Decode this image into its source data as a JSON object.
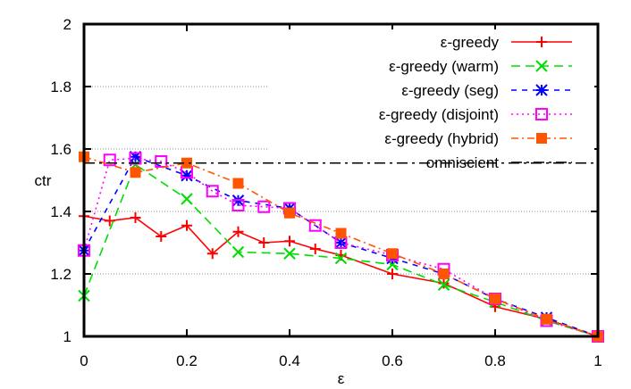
{
  "chart_data": {
    "type": "line",
    "xlabel": "ε",
    "ylabel": "ctr",
    "xlim": [
      0,
      1
    ],
    "ylim": [
      1,
      2
    ],
    "xticks": [
      "0",
      "0.2",
      "0.4",
      "0.6",
      "0.8",
      "1"
    ],
    "yticks": [
      "1",
      "1.2",
      "1.4",
      "1.6",
      "1.8",
      "2"
    ],
    "grid": "horizontal dotted",
    "legend_position": "top-right",
    "series": [
      {
        "name": "ε-greedy",
        "color": "#ff0000",
        "marker": "plus",
        "dash": "",
        "x": [
          0,
          0.05,
          0.1,
          0.15,
          0.2,
          0.25,
          0.3,
          0.35,
          0.4,
          0.45,
          0.5,
          0.6,
          0.7,
          0.8,
          0.9,
          1.0
        ],
        "y": [
          1.385,
          1.37,
          1.38,
          1.32,
          1.355,
          1.265,
          1.335,
          1.3,
          1.305,
          1.28,
          1.26,
          1.2,
          1.17,
          1.095,
          1.055,
          1.0
        ]
      },
      {
        "name": "ε-greedy (warm)",
        "color": "#00dd00",
        "marker": "cross",
        "dash": "10,6",
        "x": [
          0,
          0.1,
          0.2,
          0.3,
          0.4,
          0.5,
          0.6,
          0.7,
          0.8,
          0.9,
          1.0
        ],
        "y": [
          1.13,
          1.55,
          1.44,
          1.27,
          1.265,
          1.25,
          1.23,
          1.165,
          1.11,
          1.05,
          1.0
        ]
      },
      {
        "name": "ε-greedy (seg)",
        "color": "#0000ff",
        "marker": "star",
        "dash": "6,6",
        "x": [
          0,
          0.1,
          0.2,
          0.3,
          0.4,
          0.5,
          0.6,
          0.7,
          0.8,
          0.9,
          1.0
        ],
        "y": [
          1.275,
          1.575,
          1.515,
          1.435,
          1.41,
          1.3,
          1.25,
          1.2,
          1.12,
          1.06,
          1.0
        ]
      },
      {
        "name": "ε-greedy (disjoint)",
        "color": "#ff00ff",
        "marker": "open-square",
        "dash": "2,4",
        "x": [
          0,
          0.05,
          0.1,
          0.15,
          0.2,
          0.25,
          0.3,
          0.35,
          0.4,
          0.45,
          0.5,
          0.6,
          0.7,
          0.8,
          0.9,
          1.0
        ],
        "y": [
          1.275,
          1.565,
          1.57,
          1.56,
          1.525,
          1.465,
          1.42,
          1.415,
          1.41,
          1.355,
          1.3,
          1.26,
          1.215,
          1.12,
          1.05,
          1.0
        ]
      },
      {
        "name": "ε-greedy (hybrid)",
        "color": "#ff5500",
        "marker": "filled-square",
        "dash": "8,4,2,4",
        "x": [
          0,
          0.1,
          0.2,
          0.3,
          0.4,
          0.5,
          0.6,
          0.7,
          0.8,
          0.9,
          1.0
        ],
        "y": [
          1.575,
          1.525,
          1.555,
          1.49,
          1.395,
          1.33,
          1.265,
          1.2,
          1.12,
          1.055,
          1.0
        ]
      },
      {
        "name": "omniscient",
        "color": "#000000",
        "marker": "none",
        "dash": "12,5,3,5",
        "x": [
          0,
          1
        ],
        "y": [
          1.555,
          1.555
        ]
      }
    ]
  }
}
